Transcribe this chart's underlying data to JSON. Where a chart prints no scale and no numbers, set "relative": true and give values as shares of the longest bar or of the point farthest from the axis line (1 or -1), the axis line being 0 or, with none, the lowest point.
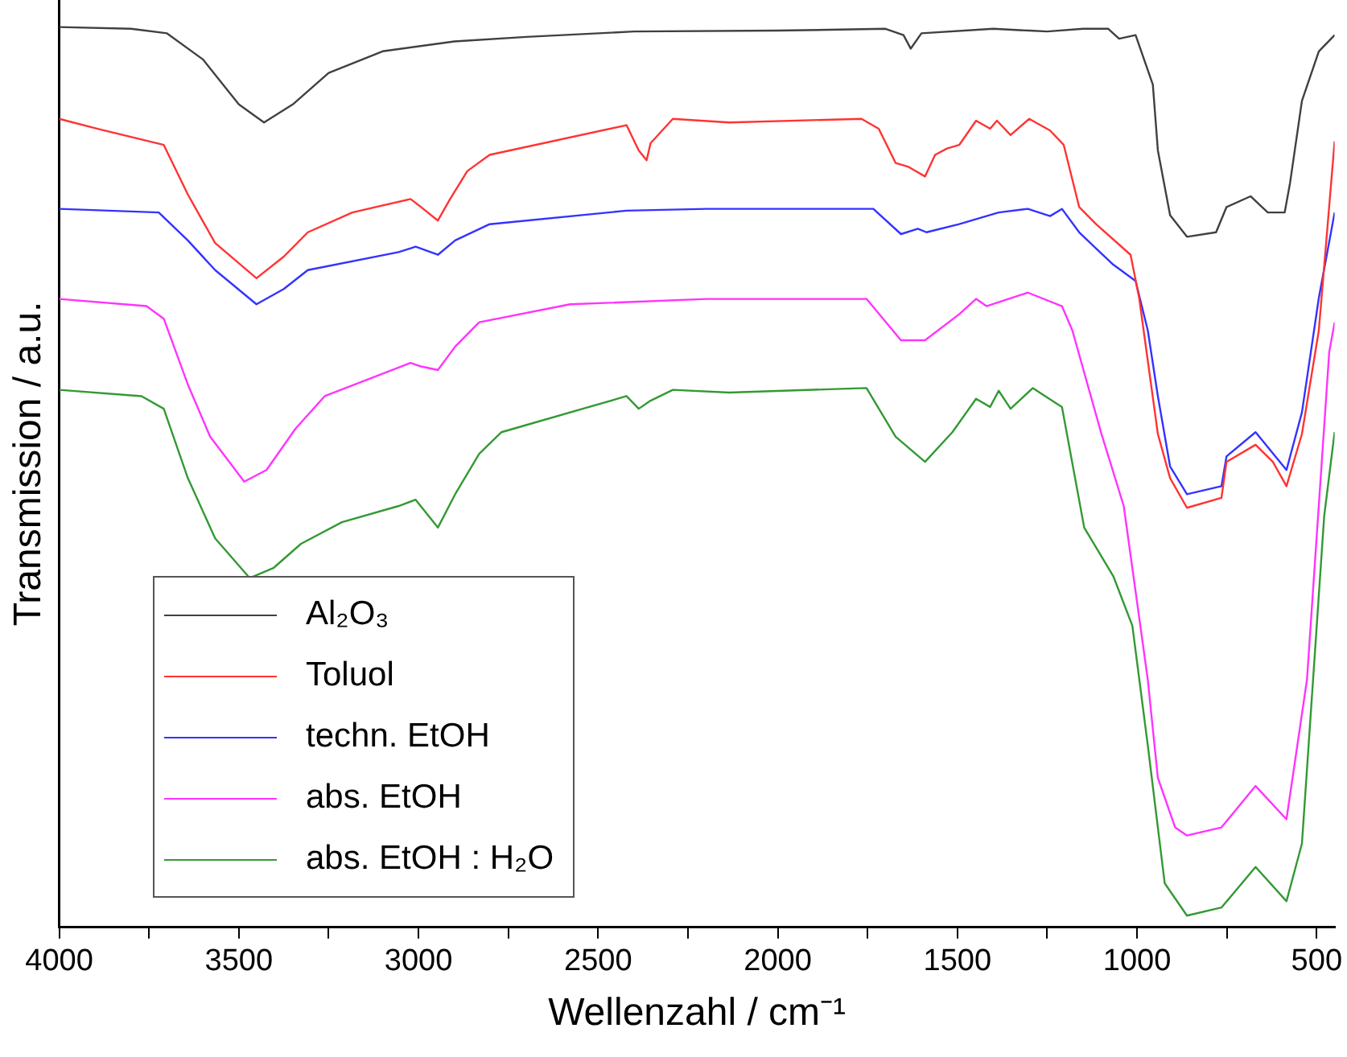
{
  "chart_data": {
    "type": "line",
    "relative": true,
    "xlabel": "Wellenzahl / cm⁻¹",
    "ylabel": "Transmission / a.u.",
    "xlim": [
      4000,
      450
    ],
    "xticks": [
      4000,
      {
        "value": 3750,
        "label": null
      },
      3500,
      {
        "value": 3250,
        "label": null
      },
      3000,
      {
        "value": 2750,
        "label": null
      },
      2500,
      {
        "value": 2250,
        "label": null
      },
      2000,
      {
        "value": 1750,
        "label": null
      },
      1500,
      {
        "value": 1250,
        "label": null
      },
      1000,
      {
        "value": 750,
        "label": null
      },
      500
    ],
    "grid": false,
    "legend": "bottom left",
    "marker": "none",
    "line_style": "solid",
    "series": [
      {
        "name": "Al₂O₃",
        "color": "#404040",
        "x": [
          4000,
          3800,
          3700,
          3600,
          3500,
          3430,
          3350,
          3250,
          3100,
          2900,
          2700,
          2400,
          2000,
          1700,
          1650,
          1630,
          1600,
          1400,
          1300,
          1250,
          1150,
          1080,
          1050,
          1004,
          956,
          942,
          908,
          861,
          780,
          751,
          684,
          636,
          589,
          574,
          541,
          494,
          450
        ],
        "values": [
          1.0,
          0.998,
          0.993,
          0.964,
          0.914,
          0.894,
          0.914,
          0.949,
          0.973,
          0.984,
          0.989,
          0.995,
          0.996,
          0.998,
          0.991,
          0.976,
          0.993,
          0.998,
          0.996,
          0.995,
          0.998,
          0.998,
          0.987,
          0.991,
          0.936,
          0.863,
          0.791,
          0.767,
          0.772,
          0.8,
          0.812,
          0.794,
          0.794,
          0.827,
          0.918,
          0.973,
          0.991
        ]
      },
      {
        "name": "Toluol",
        "color": "#ff3333",
        "x": [
          4000,
          3893,
          3709,
          3642,
          3566,
          3451,
          3375,
          3308,
          3184,
          3022,
          2993,
          2946,
          2912,
          2864,
          2802,
          2421,
          2387,
          2365,
          2354,
          2292,
          2135,
          1767,
          1719,
          1672,
          1638,
          1590,
          1562,
          1529,
          1495,
          1448,
          1409,
          1390,
          1352,
          1300,
          1242,
          1204,
          1161,
          1114,
          1018,
          994,
          942,
          908,
          861,
          765,
          751,
          670,
          622,
          584,
          541,
          494,
          450
        ],
        "values": [
          0.898,
          0.887,
          0.869,
          0.814,
          0.76,
          0.721,
          0.745,
          0.772,
          0.794,
          0.809,
          0.8,
          0.785,
          0.809,
          0.84,
          0.858,
          0.891,
          0.863,
          0.852,
          0.871,
          0.898,
          0.894,
          0.898,
          0.887,
          0.849,
          0.845,
          0.834,
          0.858,
          0.865,
          0.869,
          0.896,
          0.887,
          0.896,
          0.88,
          0.898,
          0.885,
          0.869,
          0.8,
          0.781,
          0.747,
          0.699,
          0.548,
          0.499,
          0.466,
          0.477,
          0.517,
          0.536,
          0.517,
          0.49,
          0.548,
          0.663,
          0.873
        ]
      },
      {
        "name": "techn. EtOH",
        "color": "#3333ff",
        "x": [
          4000,
          3723,
          3642,
          3566,
          3451,
          3375,
          3308,
          3055,
          3008,
          2946,
          2898,
          2802,
          2421,
          2197,
          1734,
          1657,
          1610,
          1586,
          1495,
          1385,
          1304,
          1242,
          1209,
          1161,
          1114,
          1066,
          1004,
          970,
          942,
          908,
          861,
          765,
          751,
          670,
          584,
          541,
          494,
          450
        ],
        "values": [
          0.798,
          0.794,
          0.763,
          0.73,
          0.692,
          0.709,
          0.73,
          0.75,
          0.756,
          0.747,
          0.763,
          0.781,
          0.796,
          0.798,
          0.798,
          0.77,
          0.776,
          0.772,
          0.781,
          0.794,
          0.798,
          0.79,
          0.798,
          0.772,
          0.754,
          0.736,
          0.718,
          0.663,
          0.59,
          0.512,
          0.481,
          0.49,
          0.523,
          0.55,
          0.508,
          0.572,
          0.699,
          0.794
        ]
      },
      {
        "name": "abs. EtOH",
        "color": "#ff33ff",
        "x": [
          4000,
          3757,
          3709,
          3642,
          3580,
          3485,
          3423,
          3342,
          3261,
          3022,
          2993,
          2946,
          2898,
          2831,
          2578,
          2197,
          1753,
          1657,
          1590,
          1495,
          1448,
          1419,
          1304,
          1209,
          1180,
          1099,
          1037,
          970,
          942,
          894,
          861,
          765,
          670,
          584,
          527,
          465,
          450
        ],
        "values": [
          0.698,
          0.69,
          0.676,
          0.603,
          0.545,
          0.495,
          0.508,
          0.554,
          0.59,
          0.627,
          0.623,
          0.619,
          0.645,
          0.672,
          0.692,
          0.698,
          0.698,
          0.652,
          0.652,
          0.681,
          0.698,
          0.69,
          0.705,
          0.69,
          0.663,
          0.548,
          0.468,
          0.275,
          0.166,
          0.111,
          0.102,
          0.111,
          0.157,
          0.12,
          0.275,
          0.639,
          0.672
        ]
      },
      {
        "name": "abs. EtOH : H₂O",
        "color": "#339933",
        "x": [
          4000,
          3771,
          3709,
          3642,
          3566,
          3470,
          3404,
          3327,
          3213,
          3055,
          3008,
          2946,
          2898,
          2831,
          2769,
          2421,
          2387,
          2354,
          2292,
          2135,
          1753,
          1672,
          1590,
          1514,
          1448,
          1409,
          1385,
          1352,
          1290,
          1209,
          1147,
          1066,
          1013,
          970,
          923,
          861,
          765,
          670,
          584,
          541,
          479,
          450
        ],
        "values": [
          0.597,
          0.59,
          0.576,
          0.499,
          0.432,
          0.388,
          0.399,
          0.426,
          0.45,
          0.468,
          0.475,
          0.444,
          0.481,
          0.526,
          0.55,
          0.59,
          0.576,
          0.585,
          0.597,
          0.594,
          0.599,
          0.545,
          0.517,
          0.55,
          0.587,
          0.578,
          0.596,
          0.576,
          0.599,
          0.578,
          0.444,
          0.39,
          0.335,
          0.202,
          0.049,
          0.013,
          0.022,
          0.067,
          0.029,
          0.093,
          0.457,
          0.55
        ]
      }
    ]
  }
}
